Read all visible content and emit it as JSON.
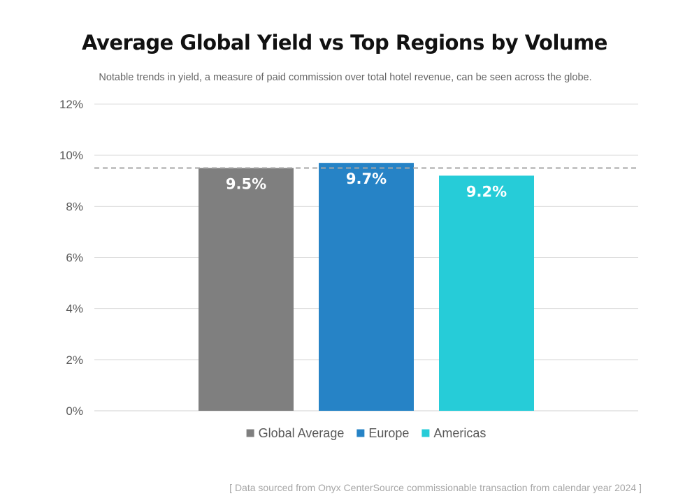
{
  "chart_data": {
    "type": "bar",
    "title": "Average Global Yield vs Top Regions by Volume",
    "subtitle": "Notable trends in yield, a measure of paid commission over total hotel revenue, can be seen across the globe.",
    "categories": [
      "Global Average",
      "Europe",
      "Americas"
    ],
    "values": [
      9.5,
      9.7,
      9.2
    ],
    "data_labels": [
      "9.5%",
      "9.7%",
      "9.2%"
    ],
    "colors": [
      "#7f7f7f",
      "#2683c6",
      "#26ccd8"
    ],
    "reference_line": {
      "value": 9.5,
      "style": "dashed",
      "color": "#a6a6a6"
    },
    "ylim": [
      0,
      12
    ],
    "y_ticks": [
      0,
      2,
      4,
      6,
      8,
      10,
      12
    ],
    "y_tick_labels": [
      "0%",
      "2%",
      "4%",
      "6%",
      "8%",
      "10%",
      "12%"
    ],
    "xlabel": "",
    "ylabel": "",
    "grid": true,
    "legend_position": "bottom"
  },
  "footnote": "[ Data sourced from Onyx CenterSource commissionable transaction from calendar year 2024 ]"
}
